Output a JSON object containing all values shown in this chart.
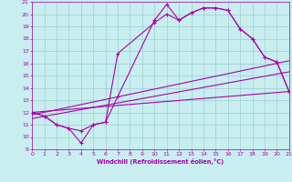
{
  "xlabel": "Windchill (Refroidissement éolien,°C)",
  "xlim": [
    0,
    21
  ],
  "ylim": [
    9,
    21
  ],
  "xticks": [
    0,
    1,
    2,
    3,
    4,
    5,
    6,
    7,
    8,
    9,
    10,
    11,
    12,
    13,
    14,
    15,
    16,
    17,
    18,
    19,
    20,
    21
  ],
  "yticks": [
    9,
    10,
    11,
    12,
    13,
    14,
    15,
    16,
    17,
    18,
    19,
    20,
    21
  ],
  "bg_color": "#c8eef0",
  "line_color": "#aa00aa",
  "curve1_x": [
    0,
    1,
    2,
    3,
    4,
    5,
    6,
    7,
    10,
    11,
    12,
    13,
    14,
    15,
    16,
    17,
    18,
    19,
    20,
    21
  ],
  "curve1_y": [
    12,
    11.7,
    11.0,
    10.7,
    9.5,
    11.0,
    11.2,
    13.3,
    19.5,
    20.8,
    19.5,
    20.1,
    20.5,
    20.5,
    20.3,
    18.8,
    18.0,
    16.5,
    16.1,
    13.7
  ],
  "curve2_x": [
    0,
    1,
    2,
    3,
    4,
    5,
    6,
    7,
    10,
    11,
    12,
    13,
    14,
    15,
    16,
    17,
    18,
    19,
    20,
    21
  ],
  "curve2_y": [
    12,
    11.7,
    11.0,
    10.7,
    10.5,
    11.0,
    11.2,
    16.8,
    19.3,
    20.0,
    19.5,
    20.1,
    20.5,
    20.5,
    20.3,
    18.8,
    18.0,
    16.5,
    16.1,
    13.7
  ],
  "line1_x": [
    0,
    21
  ],
  "line1_y": [
    11.8,
    16.2
  ],
  "line2_x": [
    0,
    21
  ],
  "line2_y": [
    11.5,
    15.3
  ],
  "line3_x": [
    0,
    21
  ],
  "line3_y": [
    12.0,
    13.7
  ]
}
